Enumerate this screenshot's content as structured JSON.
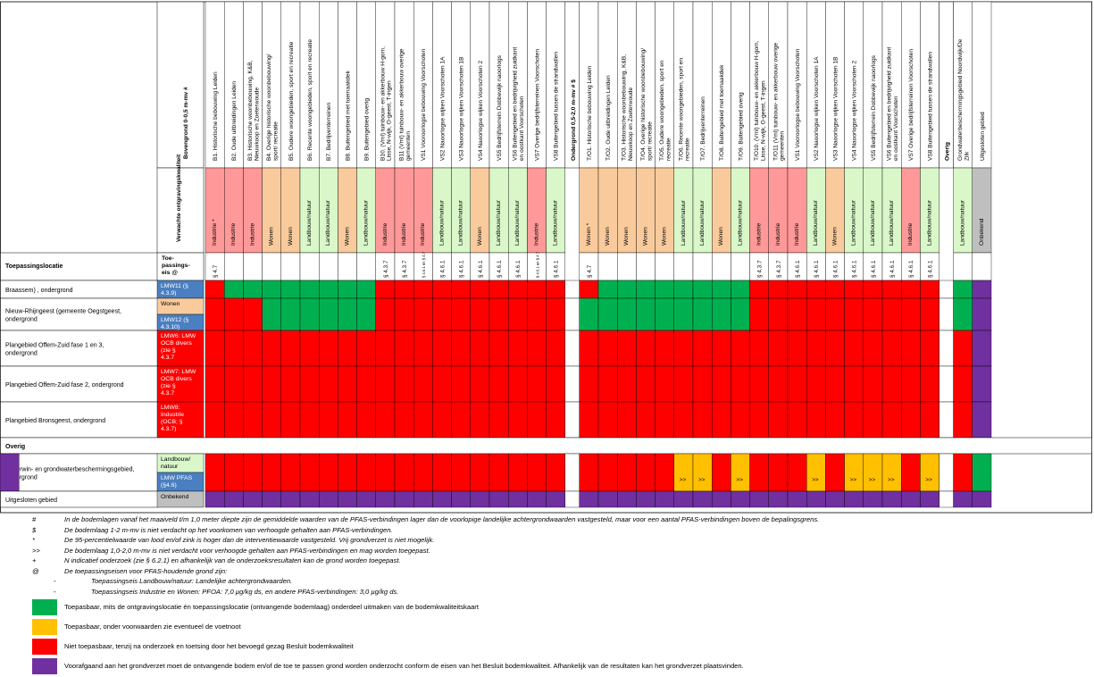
{
  "header": {
    "bovengrond_label": "Bovengrond 0-0,5 m-mv #",
    "ondergrond_label": "Ondergrond 0,5-2,0 m-mv # $",
    "overig_label": "Overig",
    "kwaliteit_label": "Verwachte ontgravingskwaliteit",
    "toepassingslocatie_label": "Toepassingslocatie",
    "toepassingseis_label": "Toe-passings-eis @"
  },
  "columns": [
    {
      "label": "B1. Historische bebouwing Leiden",
      "quality": "Industrie *",
      "color": "#ff9999",
      "req": "§ 4.7"
    },
    {
      "label": "B2. Oude uitbreidingen Leiden",
      "quality": "Industrie",
      "color": "#ff9999",
      "req": ""
    },
    {
      "label": "B3. Historische woonbebouwing, K&B, Nieuwkoop en Zoeterwoude",
      "quality": "Industrie",
      "color": "#ff9999",
      "req": ""
    },
    {
      "label": "B4. Overige historische woonbebouwing/ sport/ recreatie",
      "quality": "Wonen",
      "color": "#f9cb9c",
      "req": ""
    },
    {
      "label": "B5. Oudere woongebieden, sport en recreatie",
      "quality": "Wonen",
      "color": "#f9cb9c",
      "req": ""
    },
    {
      "label": "B6. Recente woongebieden, sport en recreatie",
      "quality": "Landbouw/natuur",
      "color": "#d9f7c9",
      "req": ""
    },
    {
      "label": "B7. Bedrijventerreinen",
      "quality": "Landbouw/natuur",
      "color": "#d9f7c9",
      "req": ""
    },
    {
      "label": "B8. Buitengebied met toemaakdek",
      "quality": "Wonen",
      "color": "#f9cb9c",
      "req": ""
    },
    {
      "label": "B9. Buitengebied overig",
      "quality": "Landbouw/natuur",
      "color": "#d9f7c9",
      "req": ""
    },
    {
      "label": "B10. (Vml) tuinbouw- en akkerbouw H-gom, Lisse, N-wijk, O-geest, T-ingen",
      "quality": "Industrie",
      "color": "#ff9999",
      "req": "§ 4.3.7"
    },
    {
      "label": "B11 (Vml) tuinbouw- en akkerbouw overige gemeenten",
      "quality": "Industrie",
      "color": "#ff9999",
      "req": "§ 4.3.7"
    },
    {
      "label": "VS1 Vooroorlogse bebouwing Voorschoten",
      "quality": "Industrie",
      "color": "#ff9999",
      "req": "§ 4.6.1 en § 4.7"
    },
    {
      "label": "VS2 Naoorlogse wijken Voorschoten 1A",
      "quality": "Landbouw/natuur",
      "color": "#d9f7c9",
      "req": "§ 4.6.1"
    },
    {
      "label": "VS3 Naoorlogse wijken Voorschoten 1B",
      "quality": "Landbouw/natuur",
      "color": "#d9f7c9",
      "req": "§ 4.6.1"
    },
    {
      "label": "VS4 Naoorlogse wijken Voorschoten 2",
      "quality": "Wonen",
      "color": "#f9cb9c",
      "req": "§ 4.6.1"
    },
    {
      "label": "VS5 Bedrijfsterrein Dobbewijk naoorlogs",
      "quality": "Landbouw/natuur",
      "color": "#d9f7c9",
      "req": "§ 4.6.1"
    },
    {
      "label": "VS6 Buitengebied en bedrijvigheid zuidkant en oostkant Voorschoten",
      "quality": "Landbouw/natuur",
      "color": "#d9f7c9",
      "req": "§ 4.6.1"
    },
    {
      "label": "VS7 Overige bedrijfsterreinen Voorschoten",
      "quality": "Industrie",
      "color": "#ff9999",
      "req": "§ 4.6.1 en § 4.7"
    },
    {
      "label": "VS8 Buitengebied tussen de strandwallen",
      "quality": "Landbouw/natuur",
      "color": "#d9f7c9",
      "req": "§ 4.6.1"
    },
    {
      "label": "T/O1. Historische bebouwing Leiden",
      "quality": "Wonen *",
      "color": "#f9cb9c",
      "req": "§ 4.7"
    },
    {
      "label": "T/O2. Oude uitbreidingen Leiden",
      "quality": "Wonen",
      "color": "#f9cb9c",
      "req": ""
    },
    {
      "label": "T/O3. Historische woonbebouwing, K&B, Nieuwkoop en Zoeterwoude",
      "quality": "Wonen",
      "color": "#f9cb9c",
      "req": ""
    },
    {
      "label": "T/O4. Overige historische woonbebouwing/ sport/ recreatie",
      "quality": "Wonen",
      "color": "#f9cb9c",
      "req": ""
    },
    {
      "label": "T/O5. Oudere woongebieden, sport en recreatie",
      "quality": "Wonen",
      "color": "#f9cb9c",
      "req": ""
    },
    {
      "label": "T/O6. Recente woongebieden, sport en recreatie",
      "quality": "Landbouw/natuur",
      "color": "#d9f7c9",
      "req": ""
    },
    {
      "label": "T/O7. Bedrijventerreinen",
      "quality": "Landbouw/natuur",
      "color": "#d9f7c9",
      "req": ""
    },
    {
      "label": "T/O8. Buitengebied met toemaakdek",
      "quality": "Wonen",
      "color": "#f9cb9c",
      "req": ""
    },
    {
      "label": "T/O9. Buitengebied overig",
      "quality": "Landbouw/natuur",
      "color": "#d9f7c9",
      "req": ""
    },
    {
      "label": "T/O10. (Vml) tuinbouw- en akkerbouw H-gom, Lisse, N-wijk, O-geest, T-ingen",
      "quality": "Industrie",
      "color": "#ff9999",
      "req": "§ 4.3.7"
    },
    {
      "label": "T/O11 (Vml) tuinbouw- en akkerbouw overige gemeenten",
      "quality": "Industrie",
      "color": "#ff9999",
      "req": "§ 4.3.7"
    },
    {
      "label": "VS1 Vooroorlogse bebouwing Voorschoten",
      "quality": "Industrie",
      "color": "#ff9999",
      "req": "§ 4.6.1"
    },
    {
      "label": "VS2 Naoorlogse wijken Voorschoten 1A",
      "quality": "Landbouw/natuur",
      "color": "#d9f7c9",
      "req": "§ 4.6.1"
    },
    {
      "label": "VS3 Naoorlogse wijken Voorschoten 1B",
      "quality": "Wonen",
      "color": "#f9cb9c",
      "req": "§ 4.6.1"
    },
    {
      "label": "VS4 Naoorlogse wijken Voorschoten 2",
      "quality": "Landbouw/natuur",
      "color": "#d9f7c9",
      "req": "§ 4.6.1"
    },
    {
      "label": "VS5 Bedrijfsterrein Dobbewijk naoorlogs",
      "quality": "Landbouw/natuur",
      "color": "#d9f7c9",
      "req": "§ 4.6.1"
    },
    {
      "label": "VS6 Buitengebied en bedrijvigheid zuidkant en oostkant Voorschoten",
      "quality": "Landbouw/natuur",
      "color": "#d9f7c9",
      "req": "§ 4.6.1"
    },
    {
      "label": "VS7 Overige bedrijfsterreinen Voorschoten",
      "quality": "Industrie",
      "color": "#ff9999",
      "req": "§ 4.6.1"
    },
    {
      "label": "VS8 Buitengebied tussen de strandwallen",
      "quality": "Landbouw/natuur",
      "color": "#d9f7c9",
      "req": "§ 4.6.1"
    },
    {
      "label": "Grondwaterbeschermingsgebied Noordwijk/De Zilk",
      "quality": "Landbouw/natuur",
      "color": "#d9f7c9",
      "req": ""
    },
    {
      "label": "Uitgesloten gebied",
      "quality": "Onbekend",
      "color": "#bfbfbf",
      "req": ""
    }
  ],
  "rows": [
    {
      "location": "Braassem) , ondergrond",
      "requirement": "LMW11 (§ 4.3.9)",
      "req_color": "#4a7fc1",
      "req_text_color": "#ffffff",
      "cells": "RGGGGGGGGRRRRRRRRRRRGGGGGGGGRRRRRRRRRRGP"
    },
    {
      "location": "Nieuw-Rhijngeest (gemeente Oegstgeest, ondergrond",
      "requirement": "Wonen",
      "req_color": "#f9cb9c",
      "req_text_color": "#000000",
      "requirement2": "LMW12 (§ 4.3.10)",
      "req2_color": "#4a7fc1",
      "cells": "RRRGGGGGGRRRRRRRRRRGGGGGGGGGRRRRRRRRRRGP"
    },
    {
      "location": "Plangebied Offem-Zuid fase 1 en 3, ondergrond",
      "requirement": "LMW6: LMW OCB divers (zie § 4.3.7",
      "req_color": "#ff0000",
      "req_text_color": "#ffffff",
      "cells": "RRRRRRRRRRRRRRRRRRRRRRRRRRRRRRRRRRRRRRRP"
    },
    {
      "location": "Plangebied Offem-Zuid fase 2, ondergrond",
      "requirement": "LMW7: LMW OCB divers (zie § 4.3.7",
      "req_color": "#ff0000",
      "req_text_color": "#ffffff",
      "cells": "RRRRRRRRRRRRRRRRRRRRRRRRRRRRRRRRRRRRRRRP"
    },
    {
      "location": "Plangebied Bronsgeest, ondergrond",
      "requirement": "LMW8: Industrie (OCB; § 4.3.7)",
      "req_color": "#ff0000",
      "req_text_color": "#ffffff",
      "cells": "RRRRRRRRRRRRRRRRRRRRRRRRRRRRRRRRRRRRRRRP"
    },
    {
      "section": "Overig"
    },
    {
      "location": "Waterwin- en grondwaterbeschermingsgebied, ondergrond",
      "requirement": "Landbouw/ natuur",
      "req_color": "#d9f7c9",
      "req_text_color": "#000000",
      "requirement2": "LMW PFAS (§4.6)",
      "req2_color": "#4a7fc1",
      "cells": "RRRRRRRRRRRRRRRRRRRRRRRRYYRYRRRYRYYYRYRGP"
    },
    {
      "location": "Uitgesloten gebied",
      "requirement": "Onbekend",
      "req_color": "#bfbfbf",
      "req_text_color": "#000000",
      "cells": "PPPPPPPPPPPPPPPPPPPPPPPPPPPPPPPPPPPPPPPP"
    }
  ],
  "cell_colors": {
    "R": "#ff0000",
    "G": "#00b050",
    "Y": "#ffc000",
    "P": "#7030a0"
  },
  "yellow_mark": ">>",
  "notes": [
    {
      "sym": "#",
      "text": "In de bodemlagen vanaf het maaiveld t/m 1,0 meter diepte zijn de gemiddelde waarden van de PFAS-verbindingen lager dan de voorlopige landelijke achtergrondwaarden vastgesteld, maar voor een aantal PFAS-verbindingen boven de bepalingsgrens."
    },
    {
      "sym": "$",
      "text": "De bodemlaag 1-2 m-mv is niet verdacht op het voorkomen van verhoogde gehalten aan PFAS-verbindingen."
    },
    {
      "sym": "*",
      "text": "De 95-percentielwaarde van lood en/of zink is hoger dan de interventiewaarde vastgesteld. Vrij grondverzet is niet mogelijk."
    },
    {
      "sym": ">>",
      "text": "De bodemlaag 1,0-2,0 m-mv is niet verdacht voor verhoogde gehalten aan PFAS-verbindingen en mag worden toegepast."
    },
    {
      "sym": "+",
      "text": "N indicatief onderzoek (zie § 6.2.1) en afhankelijk van de onderzoeksresultaten kan de grond worden toegepast."
    },
    {
      "sym": "@",
      "text": "De toepassingseisen voor PFAS-houdende grond zijn:"
    }
  ],
  "subnotes": [
    "Toepassingseis Landbouw/natuur: Landelijke achtergrondwaarden.",
    "Toepassingseis Industrie en Wonen: PFOA: 7,0 µg/kg ds, en andere PFAS-verbindingen: 3,0 µg/kg ds."
  ],
  "legend": [
    {
      "color": "#00b050",
      "text": "Toepasbaar, mits de ontgravingslocatie én toepassingslocatie (ontvangende bodemlaag) onderdeel uitmaken van de bodemkwaliteitskaart"
    },
    {
      "color": "#ffc000",
      "text": "Toepasbaar, onder voorwaarden zie eventueel de voetnoot"
    },
    {
      "color": "#ff0000",
      "text": "Niet toepasbaar, tenzij na onderzoek en toetsing door het bevoegd gezag Besluit bodemkwaliteit"
    },
    {
      "color": "#7030a0",
      "text": "Voorafgaand aan het grondverzet moet de ontvangende bodem en/of de toe te passen grond worden onderzocht conform de eisen van het Besluit bodemkwaliteit. Afhankelijk van de resultaten kan het grondverzet plaatsvinden."
    }
  ]
}
